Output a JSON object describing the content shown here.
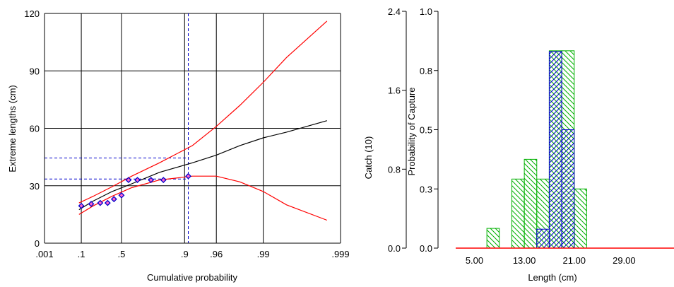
{
  "chart_data": [
    {
      "type": "line",
      "xlabel": "Cumulative probability",
      "ylabel": "Extreme lengths (cm)",
      "x_scale": "gumbel",
      "x_ticks": [
        ".001",
        ".1",
        ".5",
        ".9",
        ".96",
        ".99",
        ".999"
      ],
      "x_tick_values": [
        0.001,
        0.1,
        0.5,
        0.9,
        0.96,
        0.99,
        0.999
      ],
      "y_ticks": [
        "0",
        "30",
        "60",
        "90",
        "120"
      ],
      "y_tick_values": [
        0,
        30,
        60,
        90,
        120
      ],
      "ylim": [
        0,
        120
      ],
      "grid": true,
      "series": [
        {
          "role": "fitted",
          "color": "#000000",
          "x": [
            0.085,
            0.2,
            0.4,
            0.6,
            0.8,
            0.92,
            0.96,
            0.98,
            0.99,
            0.995,
            0.9985
          ],
          "y": [
            17.5,
            22,
            27,
            31,
            37,
            42,
            46,
            51,
            55,
            58,
            64
          ]
        },
        {
          "role": "upper-bound",
          "color": "#ff0000",
          "x": [
            0.085,
            0.2,
            0.4,
            0.6,
            0.8,
            0.92,
            0.96,
            0.98,
            0.99,
            0.995,
            0.9985
          ],
          "y": [
            21,
            24.5,
            29.5,
            35,
            42,
            51,
            61,
            72,
            84,
            97,
            116
          ]
        },
        {
          "role": "lower-bound",
          "color": "#ff0000",
          "x": [
            0.085,
            0.2,
            0.4,
            0.6,
            0.8,
            0.92,
            0.96,
            0.98,
            0.99,
            0.995,
            0.9985
          ],
          "y": [
            15,
            19.5,
            24.5,
            29,
            33,
            35,
            35,
            32,
            27,
            20,
            12
          ]
        },
        {
          "role": "observed",
          "color": "#0000cc",
          "x": [
            0.1,
            0.18,
            0.27,
            0.35,
            0.42,
            0.5,
            0.57,
            0.65,
            0.75,
            0.82,
            0.91
          ],
          "y": [
            19.5,
            20.5,
            21,
            21,
            23,
            25,
            33,
            33,
            33,
            33,
            35
          ]
        }
      ],
      "reference_lines": [
        {
          "orientation": "vertical",
          "x": 0.91,
          "color": "#0000cc",
          "style": "dashed"
        },
        {
          "orientation": "horizontal",
          "y": 44.5,
          "color": "#0000cc",
          "style": "dashed"
        },
        {
          "orientation": "horizontal",
          "y": 33.5,
          "color": "#0000cc",
          "style": "dashed"
        }
      ]
    },
    {
      "type": "bar",
      "xlabel": "Length (cm)",
      "ylabel_left": "Catch (10)",
      "ylabel_right": "Probability of Capture",
      "x_ticks": [
        "5.00",
        "13.00",
        "21.00",
        "29.00"
      ],
      "x_tick_values": [
        5,
        13,
        21,
        29
      ],
      "xlim": [
        2,
        37
      ],
      "catch_ticks": [
        "0.0",
        "0.8",
        "1.6",
        "2.4"
      ],
      "catch_tick_values": [
        0,
        0.8,
        1.6,
        2.4
      ],
      "catch_lim": [
        0,
        2.4
      ],
      "prob_ticks": [
        "0.0",
        "0.3",
        "0.5",
        "0.8",
        "1.0"
      ],
      "prob_tick_values": [
        0,
        0.25,
        0.5,
        0.75,
        1.0
      ],
      "prob_lim": [
        0,
        1.0
      ],
      "bin_width": 2,
      "series": [
        {
          "role": "catch",
          "color": "#00b000",
          "hatch": "diagonal-down",
          "bin_start": [
            7,
            11,
            13,
            15,
            17,
            19,
            21
          ],
          "values": [
            0.2,
            0.7,
            0.9,
            0.7,
            2.0,
            2.0,
            0.6
          ]
        },
        {
          "role": "probability-of-capture",
          "color": "#0000cc",
          "hatch": "diagonal-up",
          "bin_start": [
            15,
            17,
            19
          ],
          "values": [
            0.08,
            0.83,
            0.5
          ]
        }
      ],
      "baseline_color": "#ff0000"
    }
  ]
}
